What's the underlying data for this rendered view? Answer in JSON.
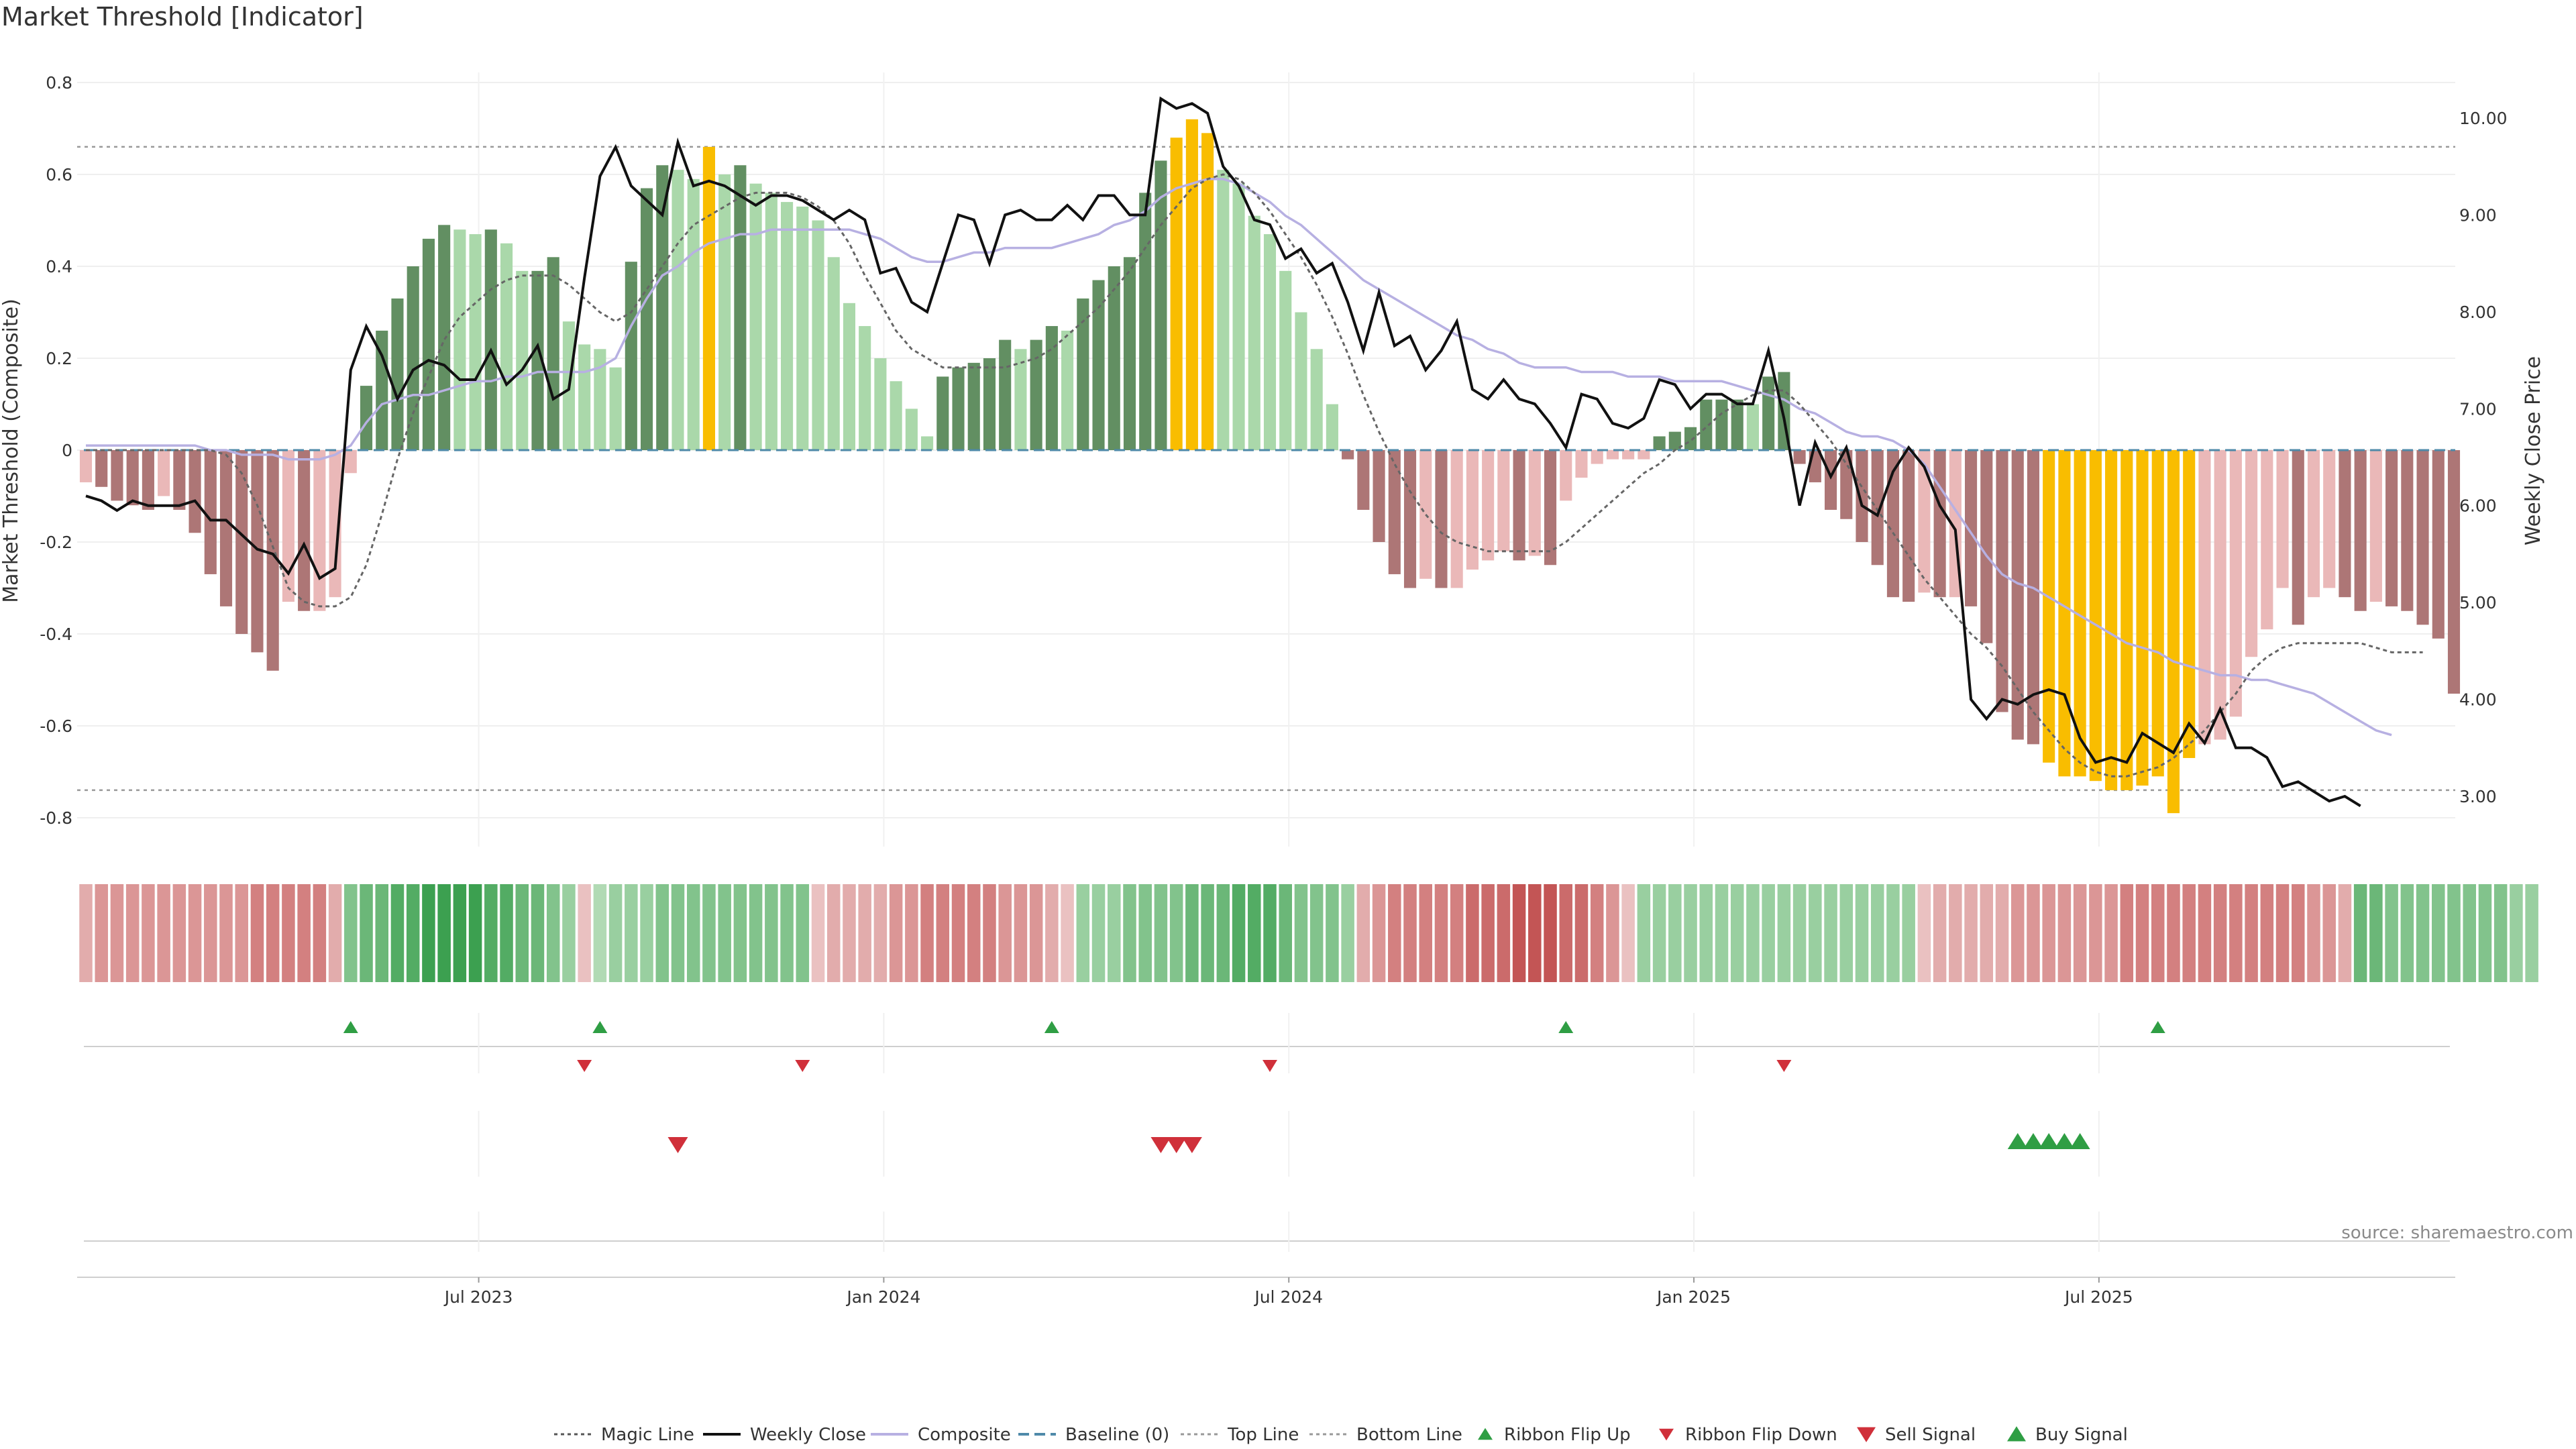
{
  "title": "Market Threshold [Indicator]",
  "source_note": "source: sharemaestro.com",
  "chart_data": {
    "type": "bar",
    "y_left_label": "Market Threshold (Composite)",
    "y_right_label": "Weekly Close Price",
    "y_left_ticks": [
      "0.8",
      "0.6",
      "0.4",
      "0.2",
      "0",
      "-0.2",
      "-0.4",
      "-0.6",
      "-0.8"
    ],
    "y_right_ticks": [
      "10.00",
      "9.00",
      "8.00",
      "7.00",
      "6.00",
      "5.00",
      "4.00",
      "3.00"
    ],
    "x_ticks": [
      "Jul 2023",
      "Jan 2024",
      "Jul 2024",
      "Jan 2025",
      "Jul 2025"
    ],
    "ylim_left": [
      -0.86,
      0.86
    ],
    "ylim_right": [
      2.55,
      10.6
    ],
    "top_line": 0.66,
    "bottom_line": -0.74,
    "composite_bars": [
      -0.07,
      -0.08,
      -0.11,
      -0.12,
      -0.13,
      -0.1,
      -0.13,
      -0.18,
      -0.27,
      -0.34,
      -0.4,
      -0.44,
      -0.48,
      -0.33,
      -0.35,
      -0.35,
      -0.32,
      -0.05,
      0.14,
      0.26,
      0.33,
      0.4,
      0.46,
      0.49,
      0.48,
      0.47,
      0.48,
      0.45,
      0.39,
      0.39,
      0.42,
      0.28,
      0.23,
      0.22,
      0.18,
      0.41,
      0.57,
      0.62,
      0.61,
      0.59,
      0.66,
      0.6,
      0.62,
      0.58,
      0.56,
      0.54,
      0.53,
      0.5,
      0.42,
      0.32,
      0.27,
      0.2,
      0.15,
      0.09,
      0.03,
      0.16,
      0.18,
      0.19,
      0.2,
      0.24,
      0.22,
      0.24,
      0.27,
      0.26,
      0.33,
      0.37,
      0.4,
      0.42,
      0.56,
      0.63,
      0.68,
      0.72,
      0.69,
      0.61,
      0.58,
      0.51,
      0.47,
      0.39,
      0.3,
      0.22,
      0.1,
      -0.02,
      -0.13,
      -0.2,
      -0.27,
      -0.3,
      -0.28,
      -0.3,
      -0.3,
      -0.26,
      -0.24,
      -0.22,
      -0.24,
      -0.23,
      -0.25,
      -0.11,
      -0.06,
      -0.03,
      -0.02,
      -0.02,
      -0.02,
      0.03,
      0.04,
      0.05,
      0.11,
      0.11,
      0.11,
      0.1,
      0.16,
      0.17,
      -0.03,
      -0.07,
      -0.13,
      -0.15,
      -0.2,
      -0.25,
      -0.32,
      -0.33,
      -0.31,
      -0.32,
      -0.32,
      -0.34,
      -0.42,
      -0.57,
      -0.63,
      -0.64,
      -0.68,
      -0.71,
      -0.71,
      -0.72,
      -0.74,
      -0.74,
      -0.73,
      -0.71,
      -0.79,
      -0.67,
      -0.64,
      -0.63,
      -0.58,
      -0.45,
      -0.39,
      -0.3,
      -0.38,
      -0.32,
      -0.3,
      -0.32,
      -0.35,
      -0.33,
      -0.34,
      -0.35,
      -0.38,
      -0.41,
      -0.53
    ],
    "composite_line": [
      0.01,
      0.01,
      0.01,
      0.01,
      0.01,
      0.01,
      0.01,
      0.01,
      0,
      0,
      -0.01,
      -0.01,
      -0.01,
      -0.02,
      -0.02,
      -0.02,
      -0.01,
      0.01,
      0.06,
      0.1,
      0.11,
      0.12,
      0.12,
      0.13,
      0.14,
      0.15,
      0.15,
      0.16,
      0.16,
      0.17,
      0.17,
      0.17,
      0.17,
      0.18,
      0.2,
      0.27,
      0.33,
      0.38,
      0.4,
      0.43,
      0.45,
      0.46,
      0.47,
      0.47,
      0.48,
      0.48,
      0.48,
      0.48,
      0.48,
      0.48,
      0.47,
      0.46,
      0.44,
      0.42,
      0.41,
      0.41,
      0.42,
      0.43,
      0.43,
      0.44,
      0.44,
      0.44,
      0.44,
      0.45,
      0.46,
      0.47,
      0.49,
      0.5,
      0.52,
      0.55,
      0.57,
      0.58,
      0.59,
      0.59,
      0.58,
      0.56,
      0.54,
      0.51,
      0.49,
      0.46,
      0.43,
      0.4,
      0.37,
      0.35,
      0.33,
      0.31,
      0.29,
      0.27,
      0.25,
      0.24,
      0.22,
      0.21,
      0.19,
      0.18,
      0.18,
      0.18,
      0.17,
      0.17,
      0.17,
      0.16,
      0.16,
      0.16,
      0.15,
      0.15,
      0.15,
      0.15,
      0.14,
      0.13,
      0.12,
      0.11,
      0.09,
      0.08,
      0.06,
      0.04,
      0.03,
      0.03,
      0.02,
      0,
      -0.03,
      -0.08,
      -0.13,
      -0.18,
      -0.23,
      -0.27,
      -0.29,
      -0.3,
      -0.32,
      -0.34,
      -0.36,
      -0.38,
      -0.4,
      -0.42,
      -0.43,
      -0.44,
      -0.46,
      -0.47,
      -0.48,
      -0.49,
      -0.49,
      -0.5,
      -0.5,
      -0.51,
      -0.52,
      -0.53,
      -0.55,
      -0.57,
      -0.59,
      -0.61,
      -0.62
    ],
    "magic_line": [
      0,
      0,
      0,
      0,
      0,
      0,
      0,
      0,
      0,
      -0.01,
      -0.05,
      -0.12,
      -0.21,
      -0.3,
      -0.33,
      -0.34,
      -0.34,
      -0.32,
      -0.25,
      -0.14,
      -0.02,
      0.08,
      0.16,
      0.24,
      0.29,
      0.32,
      0.35,
      0.37,
      0.38,
      0.38,
      0.38,
      0.36,
      0.33,
      0.3,
      0.28,
      0.3,
      0.35,
      0.4,
      0.45,
      0.49,
      0.51,
      0.53,
      0.55,
      0.56,
      0.56,
      0.56,
      0.55,
      0.53,
      0.5,
      0.45,
      0.38,
      0.32,
      0.26,
      0.22,
      0.2,
      0.18,
      0.18,
      0.18,
      0.18,
      0.18,
      0.19,
      0.2,
      0.22,
      0.25,
      0.28,
      0.31,
      0.35,
      0.39,
      0.44,
      0.49,
      0.53,
      0.57,
      0.59,
      0.6,
      0.59,
      0.56,
      0.52,
      0.47,
      0.42,
      0.36,
      0.29,
      0.21,
      0.12,
      0.04,
      -0.03,
      -0.09,
      -0.14,
      -0.18,
      -0.2,
      -0.21,
      -0.22,
      -0.22,
      -0.22,
      -0.22,
      -0.22,
      -0.2,
      -0.17,
      -0.14,
      -0.11,
      -0.08,
      -0.05,
      -0.03,
      0,
      0.02,
      0.05,
      0.08,
      0.1,
      0.12,
      0.13,
      0.13,
      0.1,
      0.06,
      0.02,
      -0.03,
      -0.08,
      -0.13,
      -0.18,
      -0.23,
      -0.28,
      -0.32,
      -0.36,
      -0.4,
      -0.43,
      -0.47,
      -0.52,
      -0.57,
      -0.61,
      -0.65,
      -0.68,
      -0.7,
      -0.71,
      -0.71,
      -0.7,
      -0.69,
      -0.67,
      -0.64,
      -0.61,
      -0.57,
      -0.53,
      -0.48,
      -0.45,
      -0.43,
      -0.42,
      -0.42,
      -0.42,
      -0.42,
      -0.42,
      -0.43,
      -0.44,
      -0.44,
      -0.44
    ],
    "weekly_close": [
      6.1,
      6.05,
      5.95,
      6.05,
      6.0,
      6.0,
      6.0,
      6.05,
      5.85,
      5.85,
      5.7,
      5.55,
      5.5,
      5.3,
      5.6,
      5.25,
      5.35,
      7.4,
      7.85,
      7.55,
      7.1,
      7.4,
      7.5,
      7.45,
      7.3,
      7.3,
      7.6,
      7.25,
      7.4,
      7.65,
      7.1,
      7.2,
      8.35,
      9.4,
      9.7,
      9.3,
      9.15,
      9.0,
      9.75,
      9.3,
      9.35,
      9.3,
      9.2,
      9.1,
      9.2,
      9.2,
      9.15,
      9.05,
      8.95,
      9.05,
      8.95,
      8.4,
      8.45,
      8.1,
      8.0,
      8.5,
      9.0,
      8.95,
      8.5,
      9.0,
      9.05,
      8.95,
      8.95,
      9.1,
      8.95,
      9.2,
      9.2,
      9.0,
      9.0,
      10.2,
      10.1,
      10.15,
      10.05,
      9.5,
      9.3,
      8.95,
      8.9,
      8.55,
      8.65,
      8.4,
      8.5,
      8.1,
      7.6,
      8.2,
      7.65,
      7.75,
      7.4,
      7.6,
      7.9,
      7.2,
      7.1,
      7.3,
      7.1,
      7.05,
      6.85,
      6.6,
      7.15,
      7.1,
      6.85,
      6.8,
      6.9,
      7.3,
      7.25,
      7.0,
      7.15,
      7.15,
      7.05,
      7.05,
      7.6,
      6.9,
      6.0,
      6.65,
      6.3,
      6.6,
      6.0,
      5.9,
      6.35,
      6.6,
      6.4,
      6.0,
      5.75,
      4.0,
      3.8,
      4.0,
      3.95,
      4.05,
      4.1,
      4.05,
      3.6,
      3.35,
      3.4,
      3.35,
      3.65,
      3.55,
      3.45,
      3.75,
      3.55,
      3.9,
      3.5,
      3.5,
      3.4,
      3.1,
      3.15,
      3.05,
      2.95,
      3.0,
      2.9
    ],
    "ribbon": [
      2,
      3,
      3,
      3,
      3,
      3,
      3,
      3,
      3,
      3,
      3,
      4,
      4,
      4,
      4,
      4,
      2,
      -3,
      -4,
      -4,
      -5,
      -5,
      -6,
      -6,
      -6,
      -6,
      -5,
      -5,
      -4,
      -4,
      -3,
      -2,
      1,
      -1,
      -2,
      -2,
      -2,
      -3,
      -3,
      -3,
      -3,
      -3,
      -3,
      -3,
      -3,
      -3,
      -3,
      1,
      2,
      2,
      2,
      2,
      3,
      3,
      4,
      4,
      4,
      4,
      4,
      3,
      3,
      3,
      2,
      1,
      -2,
      -2,
      -2,
      -3,
      -3,
      -3,
      -3,
      -4,
      -4,
      -4,
      -5,
      -5,
      -5,
      -4,
      -3,
      -3,
      -3,
      -2,
      2,
      3,
      4,
      4,
      4,
      4,
      4,
      5,
      5,
      5,
      6,
      6,
      6,
      5,
      5,
      4,
      3,
      1,
      -2,
      -2,
      -2,
      -2,
      -2,
      -2,
      -2,
      -2,
      -2,
      -2,
      -2,
      -2,
      -2,
      -2,
      -2,
      -2,
      -2,
      -2,
      1,
      2,
      2,
      2,
      2,
      2,
      3,
      3,
      3,
      3,
      3,
      3,
      3,
      4,
      4,
      4,
      4,
      4,
      4,
      4,
      4,
      4,
      4,
      4,
      4,
      3,
      3,
      2,
      -4,
      -4,
      -3,
      -3,
      -3,
      -3,
      -3,
      -3,
      -3,
      -3,
      -2,
      -2
    ],
    "ribbon_flip_up_index": [
      17,
      33,
      62,
      95,
      133
    ],
    "ribbon_flip_down_index": [
      32,
      46,
      76,
      109
    ],
    "sell_signal_index": [
      38,
      69,
      70,
      71
    ],
    "buy_signal_index": [
      124,
      125,
      126,
      127,
      128
    ],
    "colors": {
      "dark_green": "#628f62",
      "light_green": "#aad8aa",
      "dark_red": "#ad7676",
      "light_red": "#eab8b8",
      "extreme": "#f9bd00",
      "weekly_close": "#111111",
      "composite_line": "#b7b0e2",
      "magic_line": "#666666",
      "baseline": "#4f8aa9",
      "flip_up": "#2f9e44",
      "flip_down": "#d0303a",
      "sell": "#d0303a",
      "buy": "#2f9e44"
    },
    "legend": [
      "Magic Line",
      "Weekly Close",
      "Composite",
      "Baseline (0)",
      "Top Line",
      "Bottom Line",
      "Ribbon Flip Up",
      "Ribbon Flip Down",
      "Sell Signal",
      "Buy Signal"
    ]
  }
}
